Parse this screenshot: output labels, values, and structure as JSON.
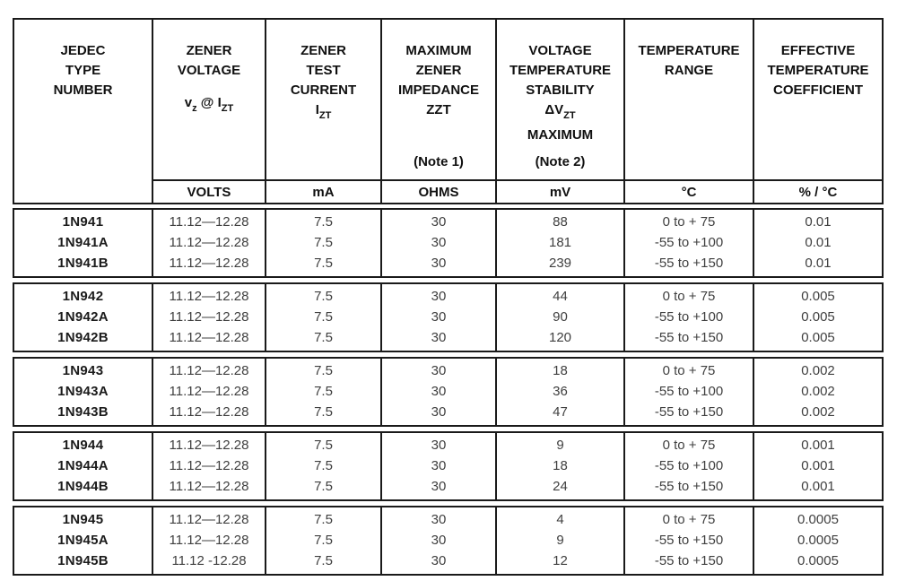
{
  "page": {
    "background": "#ffffff",
    "border_color": "#1a1a1a",
    "header_text_color": "#101010",
    "data_text_color": "#3f3f3f"
  },
  "table": {
    "header": {
      "columns": [
        {
          "line1": "JEDEC",
          "line2": "TYPE",
          "line3": "NUMBER"
        },
        {
          "line1": "ZENER",
          "line2": "VOLTAGE",
          "symbol": {
            "p1": "v",
            "s1": "z",
            "p2": " @ I",
            "s2": "ZT"
          },
          "unit": "VOLTS"
        },
        {
          "line1": "ZENER",
          "line2": "TEST",
          "line3": "CURRENT",
          "symbol": {
            "p1": "I",
            "s1": "ZT"
          },
          "unit": "mA"
        },
        {
          "line1": "MAXIMUM",
          "line2": "ZENER",
          "line3": "IMPEDANCE",
          "line4": "ZZT",
          "note": "(Note 1)",
          "unit": "OHMS"
        },
        {
          "line1": "VOLTAGE",
          "line2": "TEMPERATURE",
          "line3": "STABILITY",
          "symbol": {
            "p1": "ΔV",
            "s1": "ZT"
          },
          "line5": "MAXIMUM",
          "note": "(Note 2)",
          "unit": "mV"
        },
        {
          "line1": "TEMPERATURE",
          "line2": "RANGE",
          "unit": "°C"
        },
        {
          "line1": "EFFECTIVE",
          "line2": "TEMPERATURE",
          "line3": "COEFFICIENT",
          "unit": "% / °C"
        }
      ]
    },
    "column_keys": [
      "type_number",
      "zener_voltage",
      "test_current",
      "max_impedance",
      "voltage_stability",
      "temp_range",
      "temp_coefficient"
    ],
    "groups": [
      {
        "rows": [
          [
            "1N941",
            "11.12—12.28",
            "7.5",
            "30",
            "88",
            "0 to + 75",
            "0.01"
          ],
          [
            "1N941A",
            "11.12—12.28",
            "7.5",
            "30",
            "181",
            "-55 to +100",
            "0.01"
          ],
          [
            "1N941B",
            "11.12—12.28",
            "7.5",
            "30",
            "239",
            "-55 to +150",
            "0.01"
          ]
        ]
      },
      {
        "rows": [
          [
            "1N942",
            "11.12—12.28",
            "7.5",
            "30",
            "44",
            "0 to + 75",
            "0.005"
          ],
          [
            "1N942A",
            "11.12—12.28",
            "7.5",
            "30",
            "90",
            "-55 to +100",
            "0.005"
          ],
          [
            "1N942B",
            "11.12—12.28",
            "7.5",
            "30",
            "120",
            "-55 to +150",
            "0.005"
          ]
        ]
      },
      {
        "rows": [
          [
            "1N943",
            "11.12—12.28",
            "7.5",
            "30",
            "18",
            "0 to + 75",
            "0.002"
          ],
          [
            "1N943A",
            "11.12—12.28",
            "7.5",
            "30",
            "36",
            "-55 to +100",
            "0.002"
          ],
          [
            "1N943B",
            "11.12—12.28",
            "7.5",
            "30",
            "47",
            "-55 to +150",
            "0.002"
          ]
        ]
      },
      {
        "rows": [
          [
            "1N944",
            "11.12—12.28",
            "7.5",
            "30",
            "9",
            "0 to + 75",
            "0.001"
          ],
          [
            "1N944A",
            "11.12—12.28",
            "7.5",
            "30",
            "18",
            "-55 to +100",
            "0.001"
          ],
          [
            "1N944B",
            "11.12—12.28",
            "7.5",
            "30",
            "24",
            "-55 to +150",
            "0.001"
          ]
        ]
      },
      {
        "rows": [
          [
            "1N945",
            "11.12—12.28",
            "7.5",
            "30",
            "4",
            "0 to + 75",
            "0.0005"
          ],
          [
            "1N945A",
            "11.12—12.28",
            "7.5",
            "30",
            "9",
            "-55 to +150",
            "0.0005"
          ],
          [
            "1N945B",
            "11.12 -12.28",
            "7.5",
            "30",
            "12",
            "-55 to +150",
            "0.0005"
          ]
        ]
      }
    ]
  }
}
